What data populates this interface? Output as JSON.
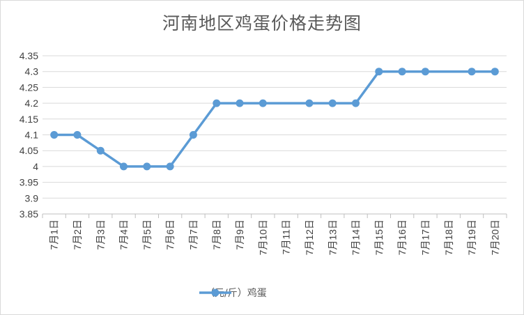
{
  "chart_data": {
    "type": "line",
    "title": "河南地区鸡蛋价格走势图",
    "xlabel": "",
    "ylabel": "",
    "categories": [
      "7月1日",
      "7月2日",
      "7月3日",
      "7月4日",
      "7月5日",
      "7月6日",
      "7月7日",
      "7月8日",
      "7月9日",
      "7月10日",
      "7月11日",
      "7月12日",
      "7月13日",
      "7月14日",
      "7月15日",
      "7月16日",
      "7月17日",
      "7月18日",
      "7月19日",
      "7月20日"
    ],
    "series": [
      {
        "name": "（元/斤）鸡蛋",
        "values": [
          4.1,
          4.1,
          4.05,
          4.0,
          4.0,
          4.0,
          4.1,
          4.2,
          4.2,
          4.2,
          null,
          4.2,
          4.2,
          4.2,
          4.3,
          4.3,
          4.3,
          null,
          4.3,
          4.3
        ],
        "color": "#5b9bd5"
      }
    ],
    "ylim": [
      3.85,
      4.35
    ],
    "yticks": [
      "3.85",
      "3.9",
      "3.95",
      "4",
      "4.05",
      "4.1",
      "4.15",
      "4.2",
      "4.25",
      "4.3",
      "4.35"
    ],
    "grid": true,
    "legend_position": "bottom"
  }
}
